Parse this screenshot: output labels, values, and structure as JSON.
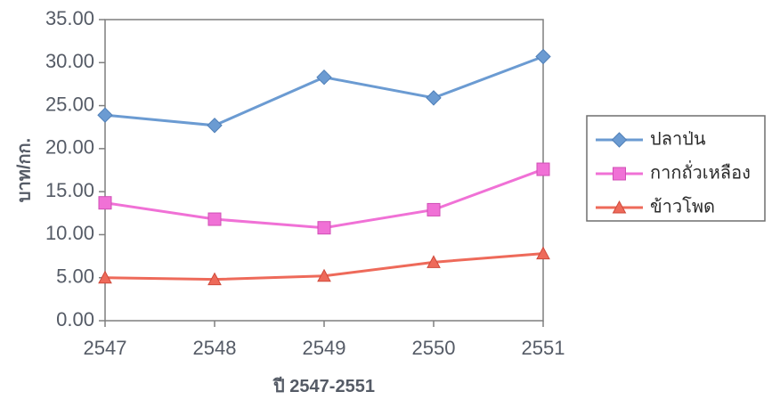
{
  "chart_data": {
    "type": "line",
    "title": "",
    "xlabel": "ปี 2547-2551",
    "ylabel": "บาท/กก.",
    "categories": [
      "2547",
      "2548",
      "2549",
      "2550",
      "2551"
    ],
    "ylim": [
      0,
      35
    ],
    "yticks": [
      "0.00",
      "5.00",
      "10.00",
      "15.00",
      "20.00",
      "25.00",
      "30.00",
      "35.00"
    ],
    "grid": false,
    "legend_position": "right",
    "series": [
      {
        "name": "ปลาป่น",
        "values": [
          23.9,
          22.7,
          28.3,
          25.9,
          30.7
        ],
        "color": "#6b9bd2",
        "marker": "diamond"
      },
      {
        "name": "กากถั่วเหลือง",
        "values": [
          13.7,
          11.8,
          10.8,
          12.9,
          17.6
        ],
        "color": "#f071d6",
        "marker": "square"
      },
      {
        "name": "ข้าวโพด",
        "values": [
          5.0,
          4.8,
          5.2,
          6.8,
          7.8
        ],
        "color": "#ee6a5a",
        "marker": "triangle"
      }
    ],
    "axis_color": "#555b66"
  }
}
